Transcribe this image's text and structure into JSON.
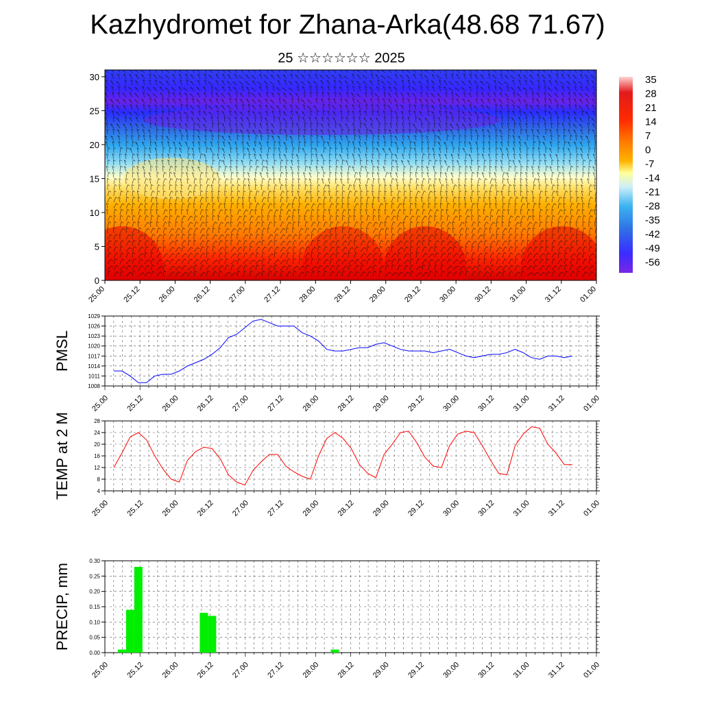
{
  "title": "Kazhydromet for Zhana-Arka(48.68 71.67)",
  "subtitle": "25 ☆☆☆☆☆☆ 2025",
  "time_labels": [
    "25.00",
    "25.12",
    "26.00",
    "26.12",
    "27.00",
    "27.12",
    "28.00",
    "28.12",
    "29.00",
    "29.12",
    "30.00",
    "30.12",
    "31.00",
    "31.12",
    "01.00"
  ],
  "chart_data": [
    {
      "type": "heatmap",
      "title": "",
      "xlabel": "",
      "ylabel": "",
      "x": [
        "25.00",
        "25.12",
        "26.00",
        "26.12",
        "27.00",
        "27.12",
        "28.00",
        "28.12",
        "29.00",
        "29.12",
        "30.00",
        "30.12",
        "31.00",
        "31.12",
        "01.00"
      ],
      "y_ticks": [
        0,
        5,
        10,
        15,
        20,
        25,
        30
      ],
      "ylim": [
        0,
        31
      ],
      "colorbar_labels": [
        "35",
        "28",
        "21",
        "14",
        "7",
        "0",
        "-7",
        "-14",
        "-21",
        "-28",
        "-35",
        "-42",
        "-49",
        "-56"
      ],
      "colormap_colors": [
        "#ffd2d2",
        "#e31a1c",
        "#ff5a00",
        "#ffa500",
        "#ffe066",
        "#ffffcc",
        "#9fe1f5",
        "#3cb3f0",
        "#2f6fe6",
        "#3a2cff",
        "#7a26e6"
      ],
      "annotations": "black wind barbs over temperature shading"
    },
    {
      "type": "line",
      "ylabel": "PMSL",
      "ylim": [
        1008,
        1029
      ],
      "y_ticks": [
        1008,
        1011,
        1014,
        1017,
        1020,
        1023,
        1026,
        1029
      ],
      "color": "#0000ff",
      "x": [
        "25.00",
        "25.03",
        "25.06",
        "25.09",
        "25.12",
        "25.15",
        "25.18",
        "25.21",
        "26.00",
        "26.03",
        "26.06",
        "26.09",
        "26.12",
        "26.15",
        "26.18",
        "26.21",
        "27.00",
        "27.03",
        "27.06",
        "27.09",
        "27.12",
        "27.15",
        "27.18",
        "27.21",
        "28.00",
        "28.03",
        "28.06",
        "28.09",
        "28.12",
        "28.15",
        "28.18",
        "28.21",
        "29.00",
        "29.03",
        "29.06",
        "29.09",
        "29.12",
        "29.15",
        "29.18",
        "29.21",
        "30.00",
        "30.03",
        "30.06",
        "30.09",
        "30.12",
        "30.15",
        "30.18",
        "30.21",
        "31.00",
        "31.03",
        "31.06",
        "31.09",
        "31.12",
        "31.15",
        "31.18",
        "31.21",
        "01.00"
      ],
      "values": [
        1012.5,
        1012.5,
        1011.0,
        1009.0,
        1009.0,
        1011.0,
        1011.5,
        1011.5,
        1012.5,
        1014.0,
        1015.0,
        1016.0,
        1017.5,
        1019.5,
        1022.5,
        1023.5,
        1025.5,
        1027.5,
        1028.0,
        1027.0,
        1026.0,
        1026.0,
        1026.0,
        1024.0,
        1023.0,
        1021.5,
        1019.0,
        1018.5,
        1018.5,
        1019.0,
        1019.5,
        1019.5,
        1020.5,
        1021.0,
        1020.0,
        1019.0,
        1018.5,
        1018.5,
        1018.5,
        1018.0,
        1018.5,
        1019.0,
        1018.0,
        1017.0,
        1016.5,
        1017.0,
        1017.5,
        1017.5,
        1018.0,
        1019.0,
        1018.0,
        1016.5,
        1016.0,
        1017.0,
        1017.0,
        1016.5,
        1017.0
      ]
    },
    {
      "type": "line",
      "ylabel": "TEMP at 2 M",
      "ylim": [
        4,
        28
      ],
      "y_ticks": [
        4,
        8,
        12,
        16,
        20,
        24,
        28
      ],
      "color": "#ff0000",
      "x": [
        "25.00",
        "25.03",
        "25.06",
        "25.09",
        "25.12",
        "25.15",
        "25.18",
        "25.21",
        "26.00",
        "26.03",
        "26.06",
        "26.09",
        "26.12",
        "26.15",
        "26.18",
        "26.21",
        "27.00",
        "27.03",
        "27.06",
        "27.09",
        "27.12",
        "27.15",
        "27.18",
        "27.21",
        "28.00",
        "28.03",
        "28.06",
        "28.09",
        "28.12",
        "28.15",
        "28.18",
        "28.21",
        "29.00",
        "29.03",
        "29.06",
        "29.09",
        "29.12",
        "29.15",
        "29.18",
        "29.21",
        "30.00",
        "30.03",
        "30.06",
        "30.09",
        "30.12",
        "30.15",
        "30.18",
        "30.21",
        "31.00",
        "31.03",
        "31.06",
        "31.09",
        "31.12",
        "31.15",
        "31.18",
        "31.21",
        "01.00"
      ],
      "values": [
        12,
        17,
        22.5,
        24,
        21.5,
        16,
        11.5,
        8,
        7,
        14.5,
        17.5,
        19,
        18.5,
        15,
        9.5,
        7,
        6,
        11,
        14,
        16.5,
        16.5,
        12.5,
        10.5,
        9,
        8,
        16,
        22,
        24,
        22,
        18.5,
        13,
        10,
        8.5,
        16.5,
        20,
        24,
        24.5,
        20.5,
        15.5,
        12.5,
        12,
        19.5,
        23.5,
        24.5,
        24,
        19.5,
        14.5,
        10,
        9.5,
        19.5,
        23.5,
        26,
        25.5,
        20,
        17,
        13,
        13
      ]
    },
    {
      "type": "bar",
      "ylabel": "PRECIP, mm",
      "ylim": [
        0,
        0.3
      ],
      "y_ticks": [
        "0.00",
        "0.05",
        "0.10",
        "0.15",
        "0.20",
        "0.25",
        "0.30"
      ],
      "color": "#00ee00",
      "x": [
        "25.03",
        "25.06",
        "25.09",
        "26.09",
        "26.12",
        "28.09"
      ],
      "values": [
        0.01,
        0.14,
        0.28,
        0.13,
        0.12,
        0.01
      ]
    }
  ]
}
